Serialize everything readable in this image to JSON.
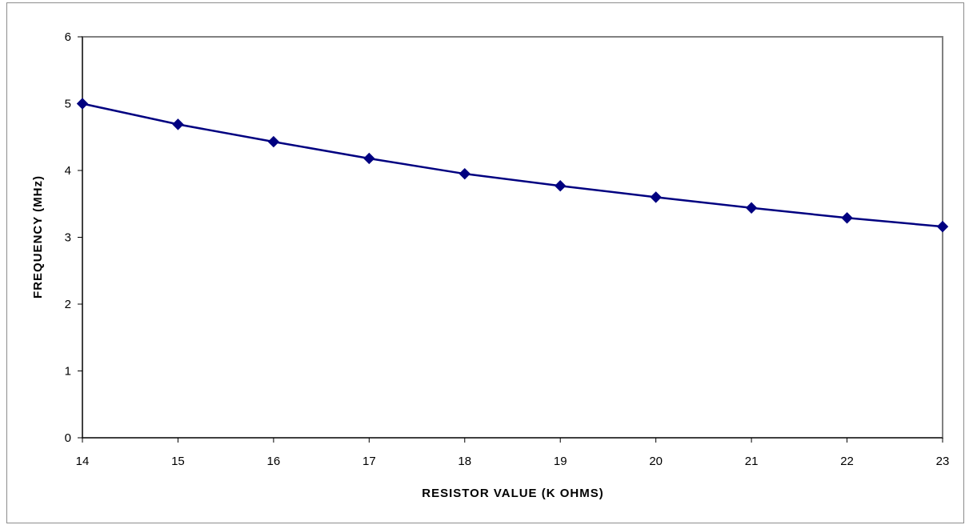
{
  "chart_data": {
    "type": "line",
    "title": "",
    "xlabel": "RESISTOR  VALUE  (K  OHMS)",
    "ylabel": "FREQUENCY  (MHz)",
    "xlim": [
      14,
      23
    ],
    "ylim": [
      0,
      6
    ],
    "x_ticks": [
      "14",
      "15",
      "16",
      "17",
      "18",
      "19",
      "20",
      "21",
      "22",
      "23"
    ],
    "y_ticks": [
      "0",
      "1",
      "2",
      "3",
      "4",
      "5",
      "6"
    ],
    "grid": false,
    "legend": "none",
    "series": [
      {
        "x": [
          14,
          15,
          16,
          17,
          18,
          19,
          20,
          21,
          22,
          23
        ],
        "values": [
          5.0,
          4.69,
          4.43,
          4.18,
          3.95,
          3.77,
          3.6,
          3.44,
          3.29,
          3.16
        ],
        "color": "#000080",
        "marker": "diamond"
      }
    ]
  }
}
